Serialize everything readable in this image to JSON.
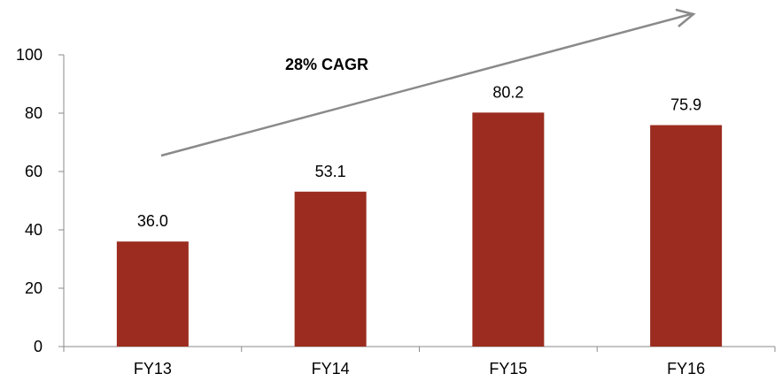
{
  "chart_data": {
    "type": "bar",
    "categories": [
      "FY13",
      "FY14",
      "FY15",
      "FY16"
    ],
    "values": [
      36.0,
      53.1,
      80.2,
      75.9
    ],
    "value_labels": [
      "36.0",
      "53.1",
      "80.2",
      "75.9"
    ],
    "y_ticks": [
      "0",
      "20",
      "40",
      "60",
      "80",
      "100"
    ],
    "ylim": [
      0,
      100
    ],
    "annotation": "28% CAGR",
    "grid": false,
    "colors": {
      "bar": "#9b2c1f",
      "axis": "#8a8a8a",
      "arrow": "#8a8a8a",
      "text": "#000000"
    }
  }
}
